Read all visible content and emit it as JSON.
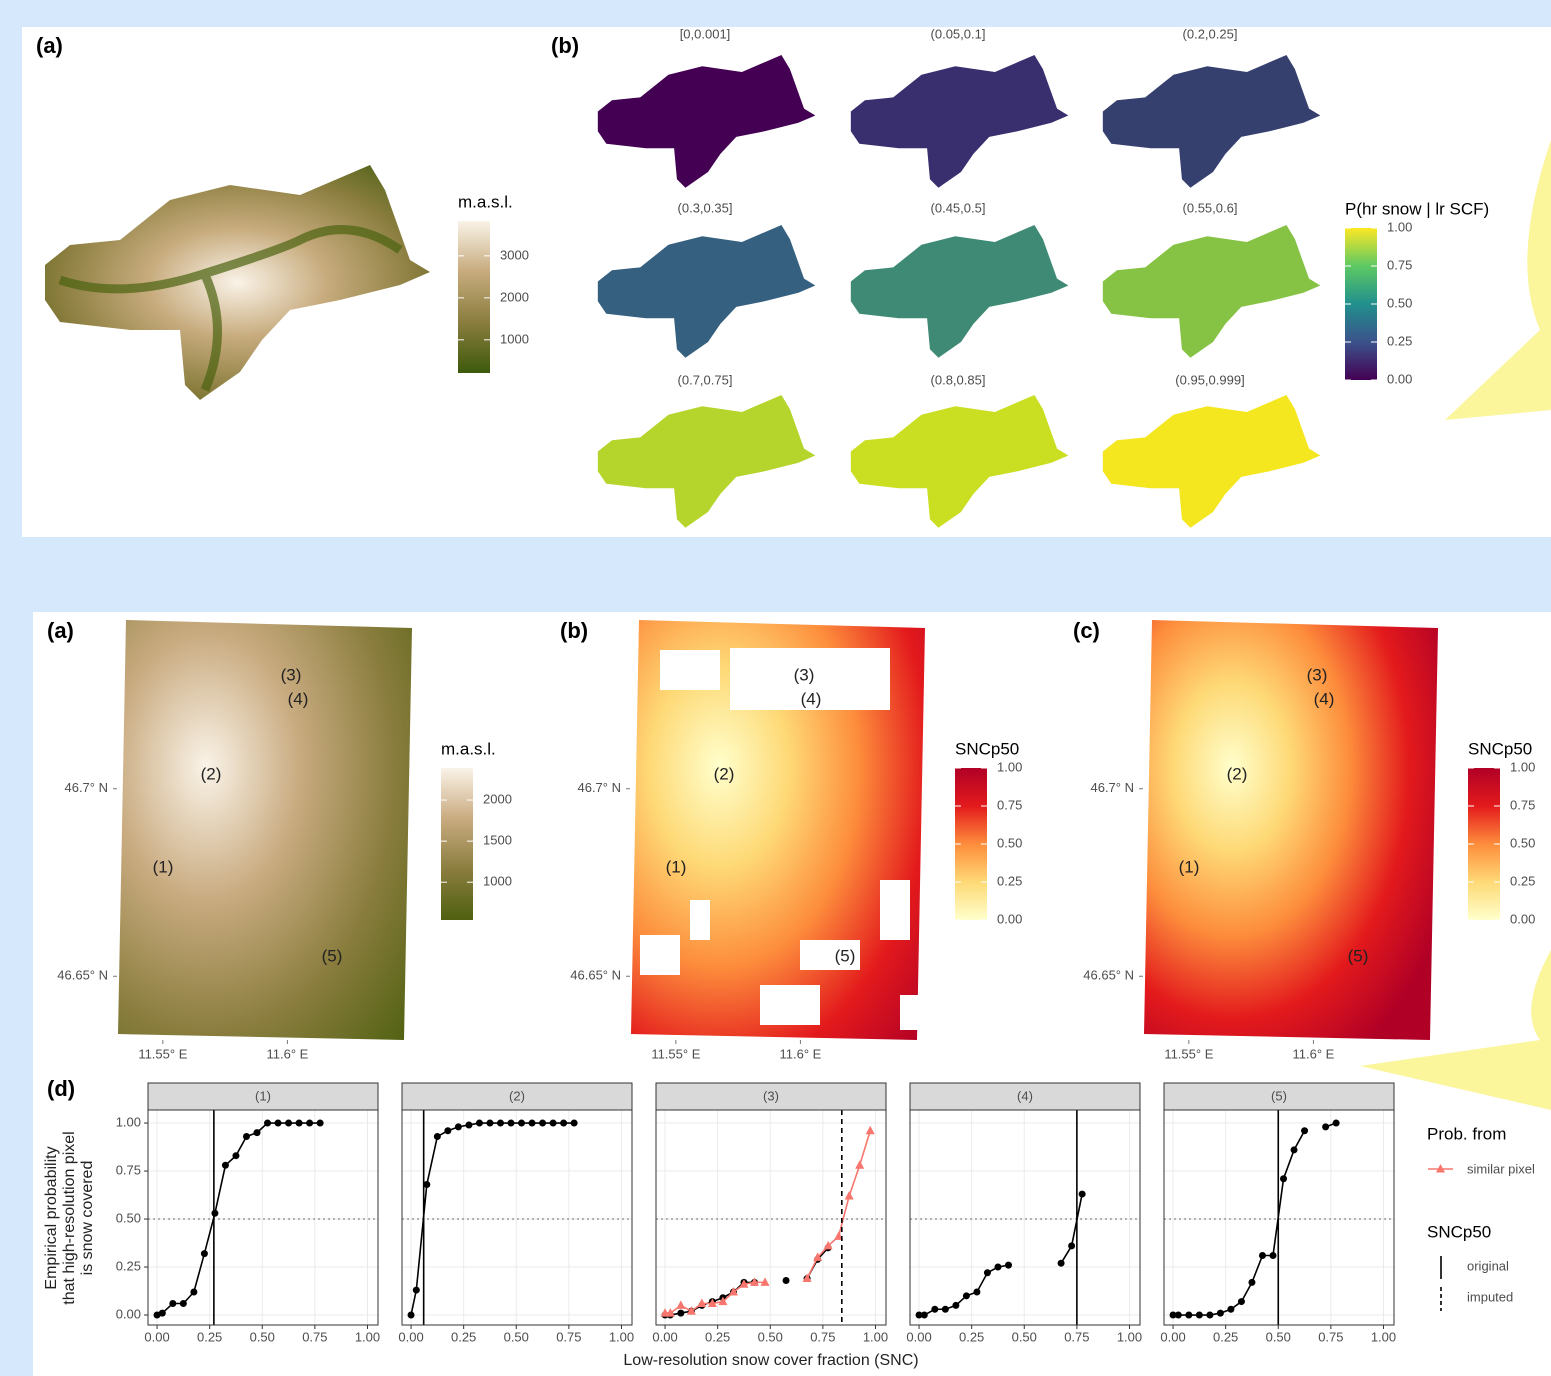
{
  "chart_data": [
    {
      "type": "map",
      "panel": "(a)",
      "legend_title": "m.a.s.l.",
      "colorbar": {
        "lim": [
          210,
          3830
        ],
        "ticks": [
          1000,
          2000,
          3000
        ],
        "colors": [
          "#3d5a0c",
          "#8a7d3e",
          "#c7ab7d",
          "#faf3e8"
        ]
      }
    },
    {
      "type": "map-grid",
      "panel": "(b)",
      "titles": [
        "[0,0.001]",
        "(0.05,0.1]",
        "(0.2,0.25]",
        "(0.3,0.35]",
        "(0.45,0.5]",
        "(0.55,0.6]",
        "(0.7,0.75]",
        "(0.8,0.85]",
        "(0.95,0.999]"
      ],
      "fills": [
        "#440154",
        "#3a2f6e",
        "#36406f",
        "#35607f",
        "#3f8a75",
        "#86c244",
        "#b5d52d",
        "#cade22",
        "#f4e61f"
      ],
      "legend_title": "P(hr snow | lr SCF)",
      "colorbar": {
        "lim": [
          0,
          1
        ],
        "ticks": [
          {
            "value": 0,
            "label": "0.00"
          },
          {
            "value": 0.25,
            "label": "0.25"
          },
          {
            "value": 0.5,
            "label": "0.50"
          },
          {
            "value": 0.75,
            "label": "0.75"
          },
          {
            "value": 1,
            "label": "1.00"
          }
        ],
        "colors": [
          "#440154",
          "#3b528b",
          "#21908d",
          "#5dc963",
          "#fde725"
        ]
      }
    },
    {
      "type": "map",
      "panel": "(a)",
      "legend_title": "m.a.s.l.",
      "colorbar": {
        "lim": [
          540,
          2390
        ],
        "ticks": [
          1000,
          1500,
          2000
        ],
        "colors": [
          "#4f6010",
          "#8a7d3e",
          "#c9ab80",
          "#faf3e8"
        ]
      },
      "xlim": [
        11.532,
        11.65
      ],
      "ylim": [
        46.633,
        46.745
      ],
      "xticks": [
        {
          "value": 11.55,
          "label": "11.55° E"
        },
        {
          "value": 11.6,
          "label": "11.6° E"
        }
      ],
      "yticks": [
        {
          "value": 46.65,
          "label": "46.65° N"
        },
        {
          "value": 46.7,
          "label": "46.7° N"
        }
      ],
      "point_labels": [
        "(1)",
        "(2)",
        "(3)",
        "(4)",
        "(5)"
      ]
    },
    {
      "type": "map",
      "panel": "(b)",
      "legend_title": "SNCp50",
      "colorbar": {
        "lim": [
          0,
          1
        ],
        "ticks": [
          {
            "value": 0,
            "label": "0.00"
          },
          {
            "value": 0.25,
            "label": "0.25"
          },
          {
            "value": 0.5,
            "label": "0.50"
          },
          {
            "value": 0.75,
            "label": "0.75"
          },
          {
            "value": 1,
            "label": "1.00"
          }
        ],
        "colors": [
          "#ffffcc",
          "#fed976",
          "#fd8d3c",
          "#e31a1c",
          "#b10026"
        ]
      },
      "xlim": [
        11.532,
        11.65
      ],
      "ylim": [
        46.633,
        46.745
      ],
      "xticks": [
        {
          "value": 11.55,
          "label": "11.55° E"
        },
        {
          "value": 11.6,
          "label": "11.6° E"
        }
      ],
      "yticks": [
        {
          "value": 46.65,
          "label": "46.65° N"
        },
        {
          "value": 46.7,
          "label": "46.7° N"
        }
      ],
      "point_labels": [
        "(1)",
        "(2)",
        "(3)",
        "(4)",
        "(5)"
      ]
    },
    {
      "type": "map",
      "panel": "(c)",
      "legend_title": "SNCp50",
      "colorbar": {
        "lim": [
          0,
          1
        ],
        "ticks": [
          {
            "value": 0,
            "label": "0.00"
          },
          {
            "value": 0.25,
            "label": "0.25"
          },
          {
            "value": 0.5,
            "label": "0.50"
          },
          {
            "value": 0.75,
            "label": "0.75"
          },
          {
            "value": 1,
            "label": "1.00"
          }
        ],
        "colors": [
          "#ffffcc",
          "#fed976",
          "#fd8d3c",
          "#e31a1c",
          "#b10026"
        ]
      },
      "xlim": [
        11.532,
        11.65
      ],
      "ylim": [
        46.633,
        46.745
      ],
      "xticks": [
        {
          "value": 11.55,
          "label": "11.55° E"
        },
        {
          "value": 11.6,
          "label": "11.6° E"
        }
      ],
      "yticks": [
        {
          "value": 46.65,
          "label": "46.65° N"
        },
        {
          "value": 46.7,
          "label": "46.7° N"
        }
      ],
      "point_labels": [
        "(1)",
        "(2)",
        "(3)",
        "(4)",
        "(5)"
      ]
    },
    {
      "type": "line",
      "panel": "(d)",
      "y_label": [
        "Empirical probability",
        "that high-resolution pixel",
        "is snow covered"
      ],
      "x_label": "Low-resolution snow cover fraction (SNC)",
      "xlim": [
        -0.043,
        1.05
      ],
      "ylim": [
        -0.052,
        1.068
      ],
      "xticks": [
        {
          "value": 0,
          "label": "0.00"
        },
        {
          "value": 0.25,
          "label": "0.25"
        },
        {
          "value": 0.5,
          "label": "0.50"
        },
        {
          "value": 0.75,
          "label": "0.75"
        },
        {
          "value": 1,
          "label": "1.00"
        }
      ],
      "yticks": [
        {
          "value": 0,
          "label": "0.00"
        },
        {
          "value": 0.25,
          "label": "0.25"
        },
        {
          "value": 0.5,
          "label": "0.50"
        },
        {
          "value": 0.75,
          "label": "0.75"
        },
        {
          "value": 1,
          "label": "1.00"
        }
      ],
      "reference_line": 0.5,
      "grid": true,
      "x": [
        0,
        0.025,
        0.075,
        0.125,
        0.175,
        0.225,
        0.275,
        0.325,
        0.375,
        0.425,
        0.475,
        0.525,
        0.575,
        0.625,
        0.675,
        0.725,
        0.775,
        0.825,
        0.875,
        0.925,
        0.975
      ],
      "legend_title": "Prob. from",
      "line_legend": {
        "title": "SNCp50",
        "original": "original",
        "imputed": "imputed"
      },
      "facets": [
        {
          "label": "(1)",
          "snc_p50": 0.27,
          "snc_p50_type": "original",
          "series": [
            {
              "color": "#000000",
              "marker": "circle",
              "values": [
                0,
                0.01,
                0.06,
                0.06,
                0.12,
                0.32,
                0.53,
                0.78,
                0.83,
                0.93,
                0.95,
                1,
                1,
                1,
                1,
                1,
                1,
                null,
                null,
                null,
                null
              ]
            }
          ]
        },
        {
          "label": "(2)",
          "snc_p50": 0.06,
          "snc_p50_type": "original",
          "series": [
            {
              "color": "#000000",
              "marker": "circle",
              "values": [
                0,
                0.13,
                0.68,
                0.93,
                0.96,
                0.98,
                0.99,
                1,
                1,
                1,
                1,
                1,
                1,
                1,
                1,
                1,
                1,
                null,
                null,
                null,
                null
              ]
            }
          ]
        },
        {
          "label": "(3)",
          "snc_p50": 0.84,
          "snc_p50_type": "imputed",
          "series": [
            {
              "color": "#000000",
              "marker": "circle",
              "values": [
                0,
                0,
                0.01,
                0.02,
                0.05,
                0.07,
                0.09,
                0.12,
                0.17,
                0.17,
                null,
                null,
                0.18,
                null,
                0.19,
                0.29,
                0.35,
                null,
                null,
                null,
                null
              ]
            },
            {
              "name": "similar pixel",
              "color": "#f8766d",
              "marker": "triangle",
              "values": [
                0.01,
                0.01,
                0.05,
                0.02,
                0.06,
                0.06,
                0.07,
                0.12,
                0.16,
                0.17,
                0.17,
                null,
                null,
                null,
                0.19,
                0.3,
                0.36,
                0.41,
                0.62,
                0.78,
                0.96
              ]
            }
          ]
        },
        {
          "label": "(4)",
          "snc_p50": 0.75,
          "snc_p50_type": "original",
          "series": [
            {
              "color": "#000000",
              "marker": "circle",
              "values": [
                0,
                0,
                0.03,
                0.03,
                0.05,
                0.1,
                0.12,
                0.22,
                0.25,
                0.26,
                null,
                null,
                null,
                null,
                0.27,
                0.36,
                0.63,
                null,
                null,
                null,
                null
              ]
            }
          ]
        },
        {
          "label": "(5)",
          "snc_p50": 0.5,
          "snc_p50_type": "original",
          "series": [
            {
              "color": "#000000",
              "marker": "circle",
              "values": [
                0,
                0,
                0,
                0,
                0,
                0.01,
                0.03,
                0.07,
                0.17,
                0.31,
                0.31,
                0.71,
                0.86,
                0.96,
                null,
                0.98,
                1,
                null,
                null,
                null,
                null
              ]
            }
          ]
        }
      ]
    }
  ]
}
